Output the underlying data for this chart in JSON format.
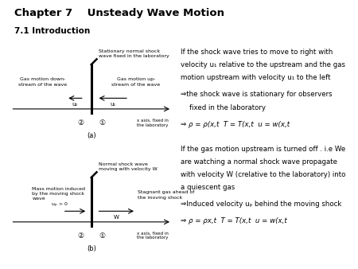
{
  "title": "Chapter 7    Unsteady Wave Motion",
  "subtitle": "7.1 Introduction",
  "bg_color": "#ffffff",
  "text_color": "#000000",
  "diagram_a": {
    "label": "(a)",
    "shock_label": "Stationary normal shock\nwave fixed in the laboratory",
    "left_label": "Gas motion down-\nstream of the wave",
    "right_label": "Gas motion up-\nstream of the wave",
    "xaxis_label": "x axis, fixed in\nthe laboratory",
    "u2_label": "u₂",
    "u1_label": "u₁",
    "circle2": "②",
    "circle1": "①"
  },
  "diagram_b": {
    "label": "(b)",
    "shock_label": "Normal shock wave\nmoving with velocity W",
    "left_label": "Mass motion induced\nby the moving shock\nwave",
    "right_label": "Stagnant gas ahead of\nthe moving shock",
    "xaxis_label": "x axis, fixed in\nthe laboratory",
    "up_label": "uₚ > 0",
    "W_label": "W",
    "circle2": "②",
    "circle1": "①"
  },
  "text_block_1_line1": "If the shock wave tries to move to right with",
  "text_block_1_line2": "velocity u₁ relative to the upstream and the gas",
  "text_block_1_line3": "motion upstream with velocity u₁ to the left",
  "text_block_1_line4": "⇒the shock wave is stationary for observers",
  "text_block_1_line5": "    fixed in the laboratory",
  "text_block_1_line6": "⇒ ρ = ρ(x,t  T = T(x,t  u = w(x,t",
  "text_block_2_line1": "If the gas motion upstream is turned off . i.e We",
  "text_block_2_line2": "are watching a normal shock wave propagate",
  "text_block_2_line3": "with velocity W (crelative to the laboratory) into",
  "text_block_2_line4": "a quiescent gas",
  "text_block_2_line5": "⇒Induced velocity uₚ behind the moving shock",
  "text_block_2_line6": "⇒ ρ = ρx,t  T = T(x,t  u = w(x,t"
}
